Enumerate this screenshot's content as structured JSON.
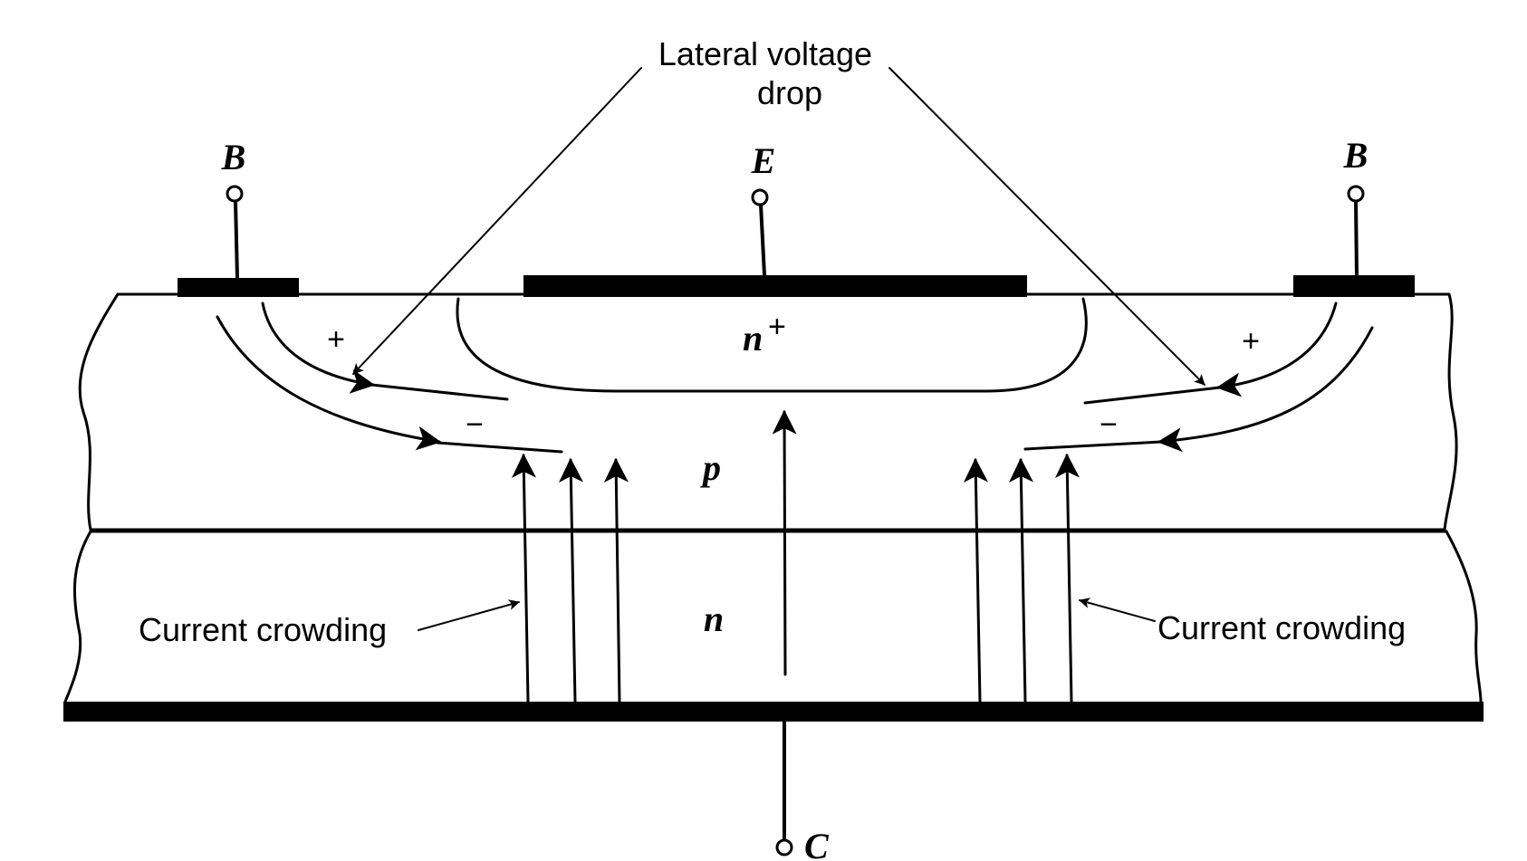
{
  "labels": {
    "lateral_voltage_drop_line1": "Lateral voltage",
    "lateral_voltage_drop_line2": "drop",
    "base_left": "B",
    "base_right": "B",
    "emitter": "E",
    "collector": "C",
    "n_plus": "n",
    "n_plus_superscript": "+",
    "p_region": "p",
    "n_region": "n",
    "current_crowding_left": "Current crowding",
    "current_crowding_right": "Current crowding",
    "plus_left": "+",
    "plus_right": "+",
    "minus_left": "−",
    "minus_right": "−"
  },
  "colors": {
    "ink": "#000000",
    "background": "#ffffff"
  }
}
